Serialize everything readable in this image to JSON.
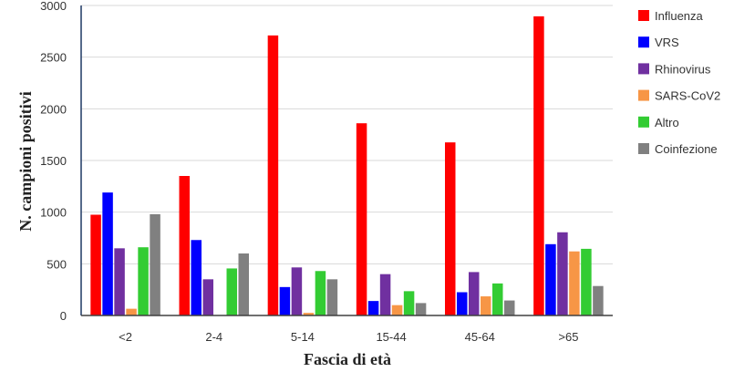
{
  "chart_data": {
    "type": "bar",
    "xlabel": "Fascia di età",
    "ylabel": "N. campioni positivi",
    "ylim": [
      0,
      3000
    ],
    "yticks": [
      0,
      500,
      1000,
      1500,
      2000,
      2500,
      3000
    ],
    "grid": true,
    "legend_position": "right",
    "categories": [
      "<2",
      "2-4",
      "5-14",
      "15-44",
      "45-64",
      ">65"
    ],
    "series": [
      {
        "name": "Influenza",
        "color": "#ff0000",
        "values": [
          975,
          1350,
          2710,
          1860,
          1675,
          2895
        ]
      },
      {
        "name": "VRS",
        "color": "#0000ff",
        "values": [
          1190,
          730,
          275,
          140,
          225,
          690
        ]
      },
      {
        "name": "Rhinovirus",
        "color": "#7030a0",
        "values": [
          650,
          350,
          465,
          400,
          420,
          805
        ]
      },
      {
        "name": "SARS-CoV2",
        "color": "#f79646",
        "values": [
          65,
          0,
          25,
          100,
          185,
          620
        ]
      },
      {
        "name": "Altro",
        "color": "#33cc33",
        "values": [
          660,
          455,
          430,
          235,
          310,
          645
        ]
      },
      {
        "name": "Coinfezione",
        "color": "#808080",
        "values": [
          980,
          600,
          350,
          120,
          145,
          285
        ]
      }
    ]
  }
}
